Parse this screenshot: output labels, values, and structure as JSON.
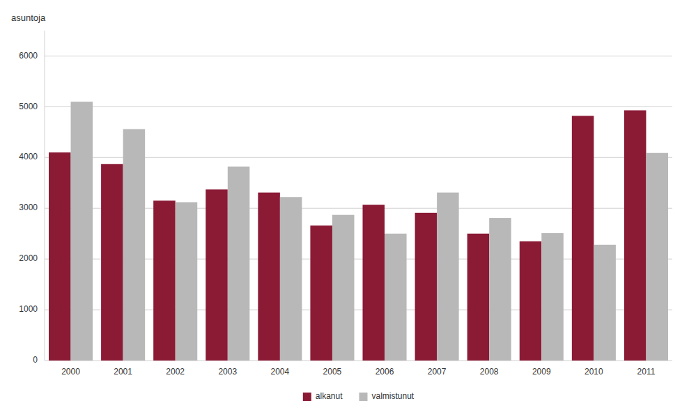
{
  "chart_data": {
    "type": "bar",
    "ylabel": "asuntoja",
    "categories": [
      "2000",
      "2001",
      "2002",
      "2003",
      "2004",
      "2005",
      "2006",
      "2007",
      "2008",
      "2009",
      "2010",
      "2011"
    ],
    "series": [
      {
        "name": "alkanut",
        "color": "#8B1A35",
        "values": [
          4100,
          3870,
          3150,
          3370,
          3310,
          2660,
          3070,
          2910,
          2500,
          2350,
          4820,
          4930
        ]
      },
      {
        "name": "valmistunut",
        "color": "#B8B8B8",
        "values": [
          5100,
          4560,
          3120,
          3820,
          3220,
          2870,
          2500,
          3310,
          2810,
          2510,
          2280,
          4090
        ]
      }
    ],
    "ylim": [
      0,
      6500
    ],
    "yticks": [
      0,
      1000,
      2000,
      3000,
      4000,
      5000,
      6000
    ],
    "grid": true,
    "legend": "bottom"
  }
}
